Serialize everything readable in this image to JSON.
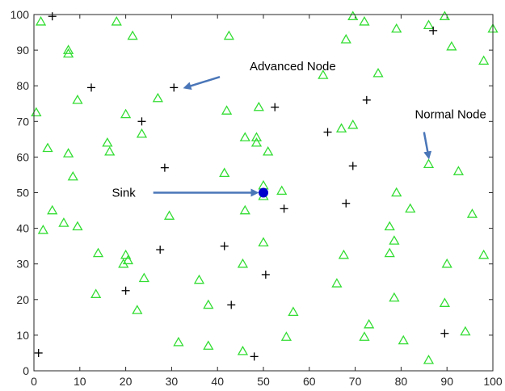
{
  "chart_data": {
    "type": "scatter",
    "title": "",
    "xlabel": "",
    "ylabel": "",
    "xlim": [
      0,
      100
    ],
    "ylim": [
      0,
      100
    ],
    "xticks": [
      0,
      10,
      20,
      30,
      40,
      50,
      60,
      70,
      80,
      90,
      100
    ],
    "yticks": [
      0,
      10,
      20,
      30,
      40,
      50,
      60,
      70,
      80,
      90,
      100
    ],
    "grid": false,
    "legend": "none",
    "colors": {
      "normal": "#33dd33",
      "advanced": "#000000",
      "sink": "#0000cc",
      "arrow": "#4a76b8",
      "axis": "#262626"
    },
    "series": [
      {
        "marker": "triangle",
        "points": [
          [
            1.5,
            98
          ],
          [
            18,
            98
          ],
          [
            21.5,
            94
          ],
          [
            7.5,
            90
          ],
          [
            7.5,
            89
          ],
          [
            42.5,
            94
          ],
          [
            69.5,
            99.5
          ],
          [
            72,
            98
          ],
          [
            79,
            96
          ],
          [
            86,
            97
          ],
          [
            89.5,
            99.5
          ],
          [
            100,
            96
          ],
          [
            68,
            93
          ],
          [
            91,
            91
          ],
          [
            98,
            87
          ],
          [
            75,
            83.5
          ],
          [
            63,
            83
          ],
          [
            9.5,
            76
          ],
          [
            27,
            76.5
          ],
          [
            20,
            72
          ],
          [
            0.5,
            72.5
          ],
          [
            42,
            73
          ],
          [
            49,
            74
          ],
          [
            69.5,
            69
          ],
          [
            67,
            68
          ],
          [
            16,
            64
          ],
          [
            16.5,
            61.5
          ],
          [
            23.5,
            66.5
          ],
          [
            3,
            62.5
          ],
          [
            7.5,
            61
          ],
          [
            46,
            65.5
          ],
          [
            48.5,
            65.5
          ],
          [
            48.5,
            64
          ],
          [
            51,
            61.5
          ],
          [
            8.5,
            54.5
          ],
          [
            41.5,
            55.5
          ],
          [
            86,
            58
          ],
          [
            92.5,
            56
          ],
          [
            50,
            52
          ],
          [
            50,
            49
          ],
          [
            54,
            50.5
          ],
          [
            46,
            45
          ],
          [
            4,
            45
          ],
          [
            2,
            39.5
          ],
          [
            6.5,
            41.5
          ],
          [
            9.5,
            40.5
          ],
          [
            29.5,
            43.5
          ],
          [
            79,
            50
          ],
          [
            82,
            45.5
          ],
          [
            95.5,
            44
          ],
          [
            77.5,
            40.5
          ],
          [
            50,
            36
          ],
          [
            14,
            33
          ],
          [
            20,
            32.5
          ],
          [
            20.5,
            31
          ],
          [
            19.5,
            30
          ],
          [
            45.5,
            30
          ],
          [
            78.5,
            36.5
          ],
          [
            77.5,
            33
          ],
          [
            67.5,
            32.5
          ],
          [
            90,
            30
          ],
          [
            98,
            32.5
          ],
          [
            24,
            26
          ],
          [
            13.5,
            21.5
          ],
          [
            36,
            25.5
          ],
          [
            66,
            24.5
          ],
          [
            22.5,
            17
          ],
          [
            38,
            18.5
          ],
          [
            56.5,
            16.5
          ],
          [
            78.5,
            20.5
          ],
          [
            89.5,
            19
          ],
          [
            31.5,
            8
          ],
          [
            38,
            7
          ],
          [
            45.5,
            5.5
          ],
          [
            55,
            9.5
          ],
          [
            72,
            9.5
          ],
          [
            73,
            13
          ],
          [
            80.5,
            8.5
          ],
          [
            94,
            11
          ],
          [
            86,
            3
          ]
        ]
      },
      {
        "marker": "plus",
        "points": [
          [
            4,
            99.5
          ],
          [
            87,
            95.5
          ],
          [
            12.5,
            79.5
          ],
          [
            30.5,
            79.5
          ],
          [
            23.5,
            70
          ],
          [
            52.5,
            74
          ],
          [
            72.5,
            76
          ],
          [
            64,
            67
          ],
          [
            28.5,
            57
          ],
          [
            69.5,
            57.5
          ],
          [
            54.5,
            45.5
          ],
          [
            68,
            47
          ],
          [
            27.5,
            34
          ],
          [
            41.5,
            35
          ],
          [
            50.5,
            27
          ],
          [
            20,
            22.5
          ],
          [
            43,
            18.5
          ],
          [
            48,
            4
          ],
          [
            1,
            5
          ],
          [
            89.5,
            10.5
          ]
        ]
      },
      {
        "marker": "dot",
        "points": [
          [
            50,
            50
          ]
        ]
      }
    ],
    "annotations": [
      {
        "text": "Advanced Node",
        "text_at": [
          47,
          85.5
        ],
        "arrow_from": [
          40.5,
          82.5
        ],
        "arrow_to": [
          33,
          79.5
        ]
      },
      {
        "text": "Normal Node",
        "text_at": [
          83,
          72
        ],
        "arrow_from": [
          85,
          67
        ],
        "arrow_to": [
          86,
          60
        ]
      },
      {
        "text": "Sink",
        "text_at": [
          17,
          50
        ],
        "arrow_from": [
          26,
          50
        ],
        "arrow_to": [
          48.5,
          50
        ]
      }
    ]
  }
}
